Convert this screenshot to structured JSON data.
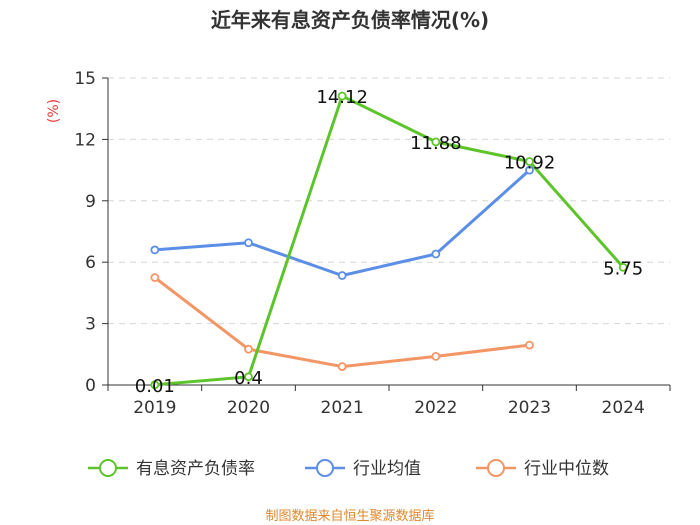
{
  "chart_data": {
    "type": "line",
    "title": "近年来有息资产负债率情况(%)",
    "ylabel": "(%)",
    "xlabel": "",
    "ylim": [
      0,
      15
    ],
    "yticks": [
      0,
      3,
      6,
      9,
      12,
      15
    ],
    "categories": [
      "2019",
      "2020",
      "2021",
      "2022",
      "2023",
      "2024"
    ],
    "series": [
      {
        "name": "有息资产负债率",
        "color": "#5ec42b",
        "values": [
          0.01,
          0.4,
          14.12,
          11.88,
          10.92,
          5.75
        ],
        "labels": [
          "0.01",
          "0.4",
          "14.12",
          "11.88",
          "10.92",
          "5.75"
        ]
      },
      {
        "name": "行业均值",
        "color": "#5b8ee6",
        "values": [
          6.6,
          6.95,
          5.35,
          6.4,
          10.5,
          null
        ]
      },
      {
        "name": "行业中位数",
        "color": "#f49566",
        "values": [
          5.25,
          1.75,
          0.9,
          1.4,
          1.95,
          null
        ]
      }
    ],
    "grid": true,
    "legend": "bottom"
  },
  "source": "制图数据来自恒生聚源数据库"
}
